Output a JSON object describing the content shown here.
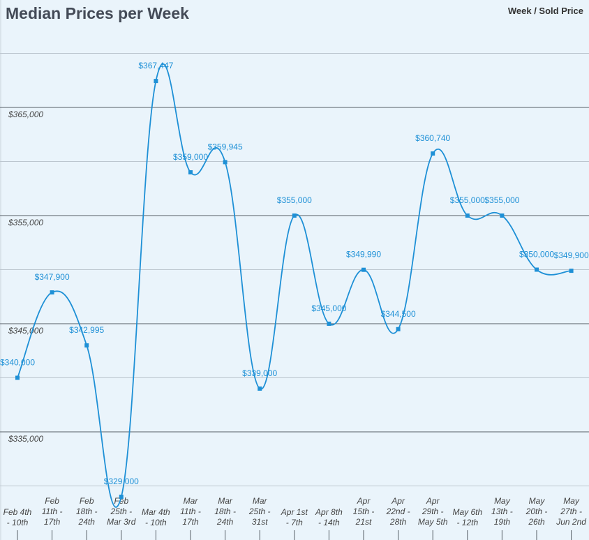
{
  "chart_data": {
    "type": "line",
    "title": "Median Prices per Week",
    "legend": "Week / Sold Price",
    "legend_position": "top-right",
    "grid": true,
    "ylim": [
      330000,
      370000
    ],
    "y_ticks": [
      "$335,000",
      "$345,000",
      "$355,000",
      "$365,000"
    ],
    "y_tick_values": [
      335000,
      345000,
      355000,
      365000
    ],
    "line_color": "#1e90d6",
    "categories": [
      [
        "Feb 4th",
        "- 10th"
      ],
      [
        "Feb",
        "11th -",
        "17th"
      ],
      [
        "Feb",
        "18th -",
        "24th"
      ],
      [
        "Feb",
        "25th -",
        "Mar 3rd"
      ],
      [
        "Mar 4th",
        "- 10th"
      ],
      [
        "Mar",
        "11th -",
        "17th"
      ],
      [
        "Mar",
        "18th -",
        "24th"
      ],
      [
        "Mar",
        "25th -",
        "31st"
      ],
      [
        "Apr 1st",
        "- 7th"
      ],
      [
        "Apr 8th",
        "- 14th"
      ],
      [
        "Apr",
        "15th -",
        "21st"
      ],
      [
        "Apr",
        "22nd -",
        "28th"
      ],
      [
        "Apr",
        "29th -",
        "May 5th"
      ],
      [
        "May 6th",
        "- 12th"
      ],
      [
        "May",
        "13th -",
        "19th"
      ],
      [
        "May",
        "20th -",
        "26th"
      ],
      [
        "May",
        "27th -",
        "Jun 2nd"
      ]
    ],
    "series": [
      {
        "values": [
          340000,
          347900,
          342995,
          329000,
          367447,
          359000,
          359945,
          339000,
          355000,
          345000,
          349990,
          344500,
          360740,
          355000,
          355000,
          350000,
          349900
        ],
        "labels": [
          "$340,000",
          "$347,900",
          "$342,995",
          "$329,000",
          "$367,447",
          "$359,000",
          "$359,945",
          "$339,000",
          "$355,000",
          "$345,000",
          "$349,990",
          "$344,500",
          "$360,740",
          "$355,000",
          "$355,000",
          "$350,000",
          "$349,900"
        ]
      }
    ]
  }
}
